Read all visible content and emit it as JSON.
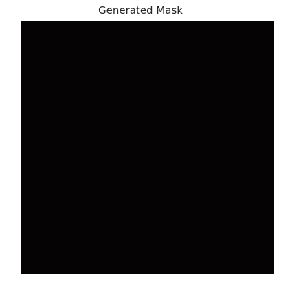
{
  "figure": {
    "title": "Generated Mask"
  },
  "image": {
    "description_name": "generated-mask",
    "background_color": "#050304",
    "palette": {
      "dark": "#050304",
      "pink": "#ff5c8f",
      "pink_deep": "#c4144f",
      "gray_light": "#d9d9d9",
      "gray_mid": "#8a8a86",
      "brown_gray": "#6b6259"
    }
  }
}
